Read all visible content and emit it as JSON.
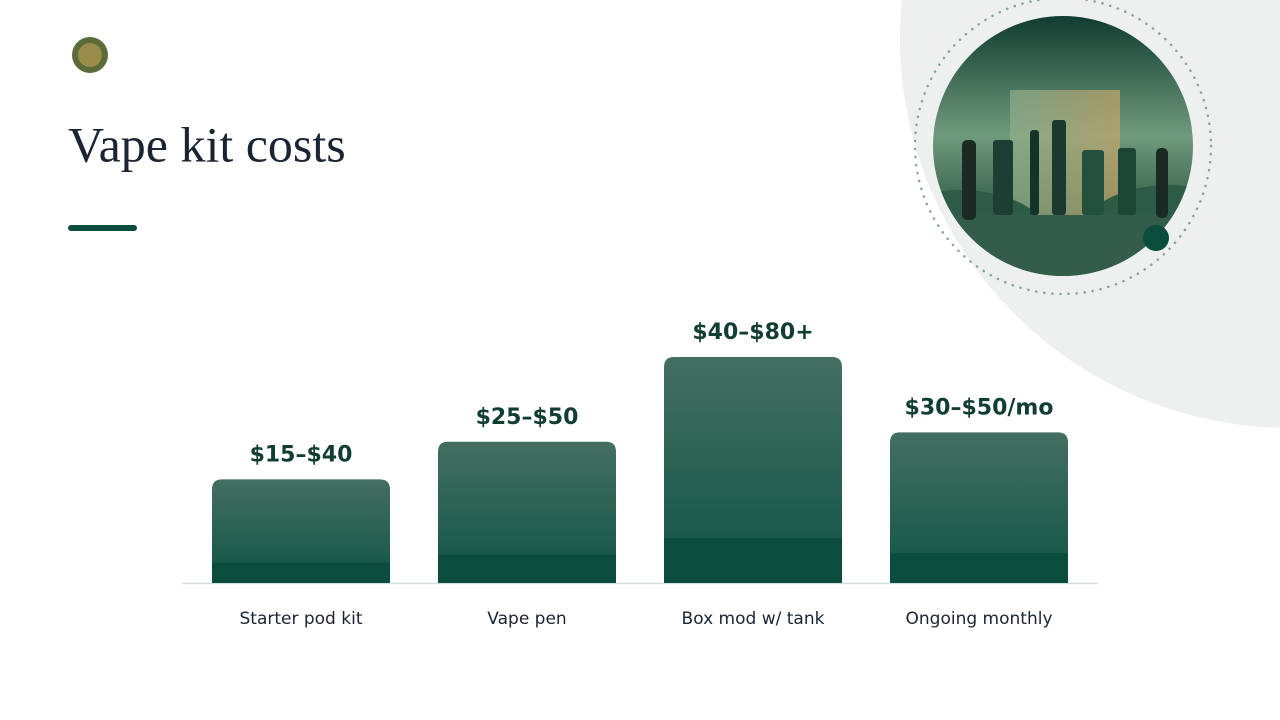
{
  "chart_data": {
    "type": "bar",
    "title": "Vape kit costs",
    "categories": [
      "Starter pod kit",
      "Vape pen",
      "Box mod w/ tank",
      "Ongoing monthly"
    ],
    "values": [
      27.5,
      37.5,
      60,
      40
    ],
    "value_labels": [
      "$15–$40",
      "$25–$50",
      "$40–$80+",
      "$30–$50/mo"
    ],
    "color": "#0b4d3c"
  }
}
